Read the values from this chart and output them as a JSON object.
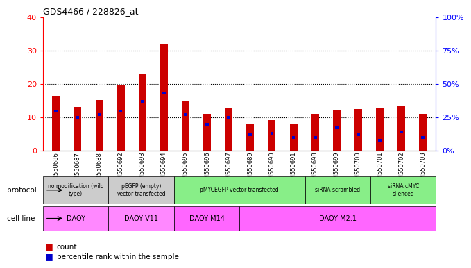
{
  "title": "GDS4466 / 228826_at",
  "samples": [
    "GSM550686",
    "GSM550687",
    "GSM550688",
    "GSM550692",
    "GSM550693",
    "GSM550694",
    "GSM550695",
    "GSM550696",
    "GSM550697",
    "GSM550689",
    "GSM550690",
    "GSM550691",
    "GSM550698",
    "GSM550699",
    "GSM550700",
    "GSM550701",
    "GSM550702",
    "GSM550703"
  ],
  "count_values": [
    16.5,
    13.2,
    15.2,
    19.5,
    23.0,
    32.0,
    15.0,
    11.0,
    13.0,
    8.2,
    9.2,
    8.0,
    11.0,
    12.0,
    12.5,
    13.0,
    13.5,
    11.0
  ],
  "percentile_values": [
    30,
    25,
    27,
    30,
    37,
    43,
    27,
    20,
    25,
    12,
    13,
    10,
    10,
    17,
    12,
    8,
    14,
    10
  ],
  "bar_color": "#cc0000",
  "pct_color": "#0000cc",
  "ylim_left": [
    0,
    40
  ],
  "ylim_right": [
    0,
    100
  ],
  "yticks_left": [
    0,
    10,
    20,
    30,
    40
  ],
  "yticks_right": [
    0,
    25,
    50,
    75,
    100
  ],
  "ytick_labels_right": [
    "0%",
    "25%",
    "50%",
    "75%",
    "100%"
  ],
  "protocol_groups": [
    {
      "label": "no modification (wild\ntype)",
      "start": 0,
      "end": 3,
      "color": "#cccccc"
    },
    {
      "label": "pEGFP (empty)\nvector-transfected",
      "start": 3,
      "end": 6,
      "color": "#cccccc"
    },
    {
      "label": "pMYCEGFP vector-transfected",
      "start": 6,
      "end": 12,
      "color": "#88ee88"
    },
    {
      "label": "siRNA scrambled",
      "start": 12,
      "end": 15,
      "color": "#88ee88"
    },
    {
      "label": "siRNA cMYC\nsilenced",
      "start": 15,
      "end": 18,
      "color": "#88ee88"
    }
  ],
  "cell_line_groups": [
    {
      "label": "DAOY",
      "start": 0,
      "end": 3,
      "color": "#ff88ff"
    },
    {
      "label": "DAOY V11",
      "start": 3,
      "end": 6,
      "color": "#ff88ff"
    },
    {
      "label": "DAOY M14",
      "start": 6,
      "end": 9,
      "color": "#ff66ff"
    },
    {
      "label": "DAOY M2.1",
      "start": 9,
      "end": 18,
      "color": "#ff66ff"
    }
  ],
  "background_color": "#ffffff",
  "plot_bg_color": "#ffffff",
  "bar_width": 0.35,
  "pct_bar_width": 0.15
}
